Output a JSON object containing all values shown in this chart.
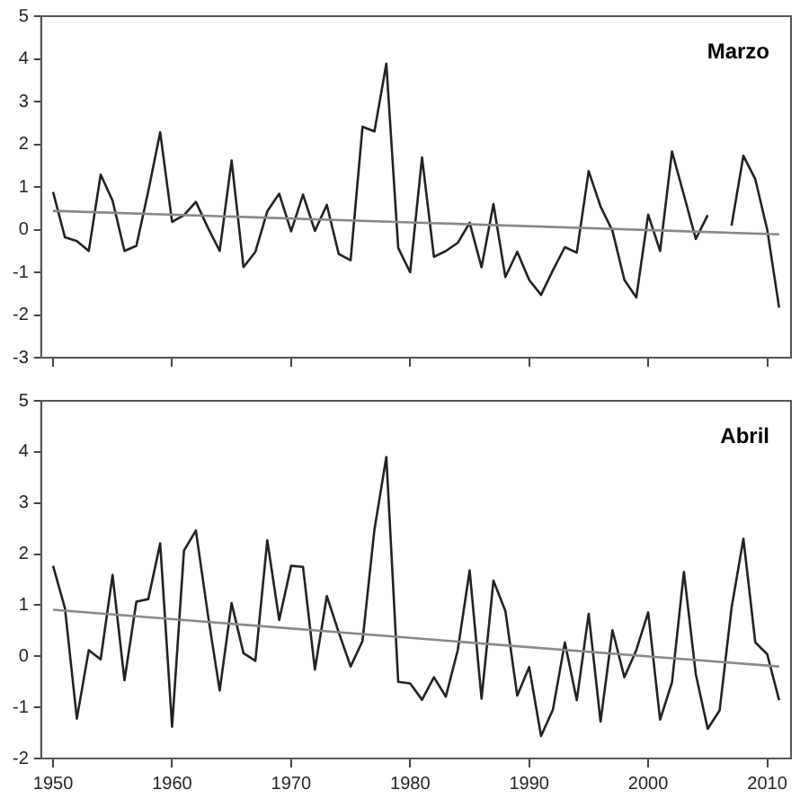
{
  "chart_data": [
    {
      "type": "line",
      "title": "Marzo",
      "x": [
        1950,
        1951,
        1952,
        1953,
        1954,
        1955,
        1956,
        1957,
        1958,
        1959,
        1960,
        1961,
        1962,
        1963,
        1964,
        1965,
        1966,
        1967,
        1968,
        1969,
        1970,
        1971,
        1972,
        1973,
        1974,
        1975,
        1976,
        1977,
        1978,
        1979,
        1980,
        1981,
        1982,
        1983,
        1984,
        1985,
        1986,
        1987,
        1988,
        1989,
        1990,
        1991,
        1992,
        1993,
        1994,
        1995,
        1996,
        1997,
        1998,
        1999,
        2000,
        2001,
        2002,
        2003,
        2004,
        2005,
        2006,
        2007,
        2008,
        2009,
        2010,
        2011
      ],
      "series": [
        {
          "color": "#222222",
          "values": [
            0.88,
            -0.18,
            -0.27,
            -0.5,
            1.29,
            0.68,
            -0.5,
            -0.38,
            0.9,
            2.28,
            0.18,
            0.34,
            0.65,
            0.05,
            -0.5,
            1.62,
            -0.88,
            -0.52,
            0.43,
            0.84,
            -0.04,
            0.82,
            -0.03,
            0.58,
            -0.57,
            -0.72,
            2.41,
            2.3,
            3.89,
            -0.43,
            -1.0,
            1.69,
            -0.64,
            -0.5,
            -0.31,
            0.16,
            -0.88,
            0.6,
            -1.11,
            -0.52,
            -1.18,
            -1.53,
            -0.95,
            -0.41,
            -0.54,
            1.37,
            0.54,
            -0.03,
            -1.18,
            -1.59,
            0.35,
            -0.5,
            1.83,
            0.81,
            -0.22,
            0.34,
            null,
            0.09,
            1.73,
            1.18,
            0,
            -1.83
          ]
        },
        {
          "type": "line",
          "color": "#888888",
          "x": [
            1950,
            1980,
            2011
          ],
          "values": [
            0.44,
            0.17,
            -0.11
          ]
        }
      ],
      "xlim": [
        1949,
        2012
      ],
      "xticks": [
        1950,
        1960,
        1970,
        1980,
        1990,
        2000,
        2010
      ],
      "ylim": [
        -3,
        5
      ],
      "yticks": [
        -3,
        -2,
        -1,
        0,
        1,
        2,
        3,
        4,
        5
      ],
      "tick_labels": "y",
      "grid": false,
      "legend": false,
      "marker": "none"
    },
    {
      "type": "line",
      "title": "Abril",
      "x": [
        1950,
        1951,
        1952,
        1953,
        1954,
        1955,
        1956,
        1957,
        1958,
        1959,
        1960,
        1961,
        1962,
        1963,
        1964,
        1965,
        1966,
        1967,
        1968,
        1969,
        1970,
        1971,
        1972,
        1973,
        1974,
        1975,
        1976,
        1977,
        1978,
        1979,
        1980,
        1981,
        1982,
        1983,
        1984,
        1985,
        1986,
        1987,
        1988,
        1989,
        1990,
        1991,
        1992,
        1993,
        1994,
        1995,
        1996,
        1997,
        1998,
        1999,
        2000,
        2001,
        2002,
        2003,
        2004,
        2005,
        2006,
        2007,
        2008,
        2009,
        2010,
        2011
      ],
      "series": [
        {
          "color": "#222222",
          "values": [
            1.77,
            0.94,
            -1.22,
            0.12,
            -0.06,
            1.59,
            -0.47,
            1.07,
            1.12,
            2.21,
            -1.38,
            2.07,
            2.46,
            0.83,
            -0.67,
            1.04,
            0.06,
            -0.09,
            2.27,
            0.71,
            1.77,
            1.75,
            -0.26,
            1.18,
            0.47,
            -0.2,
            0.3,
            2.48,
            3.9,
            -0.5,
            -0.53,
            -0.85,
            -0.41,
            -0.79,
            0.12,
            1.68,
            -0.83,
            1.48,
            0.89,
            -0.77,
            -0.21,
            -1.56,
            -1.04,
            0.27,
            -0.86,
            0.83,
            -1.28,
            0.51,
            -0.41,
            0.12,
            0.86,
            -1.24,
            -0.51,
            1.65,
            -0.35,
            -1.42,
            -1.06,
            0.94,
            2.3,
            0.27,
            0.04,
            -0.86
          ]
        },
        {
          "type": "line",
          "color": "#888888",
          "x": [
            1950,
            1980,
            2011
          ],
          "values": [
            0.91,
            0.36,
            -0.2
          ]
        }
      ],
      "xlim": [
        1949,
        2012
      ],
      "xticks": [
        1950,
        1960,
        1970,
        1980,
        1990,
        2000,
        2010
      ],
      "ylim": [
        -2,
        5
      ],
      "yticks": [
        -2,
        -1,
        0,
        1,
        2,
        3,
        4,
        5
      ],
      "grid": false,
      "legend": false,
      "marker": "none"
    }
  ]
}
